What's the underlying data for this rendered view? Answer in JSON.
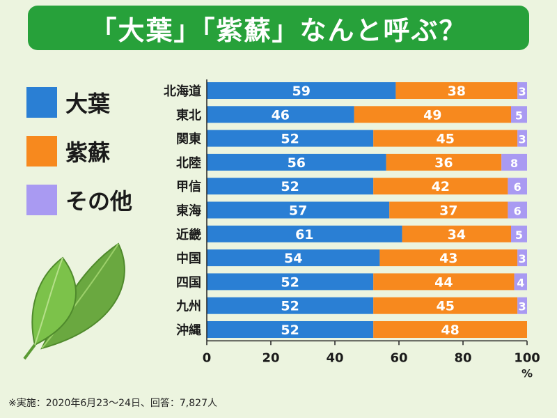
{
  "title": "「大葉」「紫蘇」なんと呼ぶ？",
  "footnote": "※実施：2020年6月23～24日、回答：7,827人",
  "colors": {
    "accent": "#27a13a",
    "background": "#ecf4df"
  },
  "chart_data": {
    "type": "bar",
    "orientation": "horizontal",
    "stacked": true,
    "categories": [
      "北海道",
      "東北",
      "関東",
      "北陸",
      "甲信",
      "東海",
      "近畿",
      "中国",
      "四国",
      "九州",
      "沖縄"
    ],
    "series": [
      {
        "name": "大葉",
        "color": "#2a7fd4",
        "values": [
          59,
          46,
          52,
          56,
          52,
          57,
          61,
          54,
          52,
          52,
          52
        ]
      },
      {
        "name": "紫蘇",
        "color": "#f7891e",
        "values": [
          38,
          49,
          45,
          36,
          42,
          37,
          34,
          43,
          44,
          45,
          48
        ]
      },
      {
        "name": "その他",
        "color": "#a99af2",
        "values": [
          3,
          5,
          3,
          8,
          6,
          6,
          5,
          3,
          4,
          3,
          0
        ]
      }
    ],
    "xlim": [
      0,
      100
    ],
    "xticks": [
      "0",
      "20",
      "40",
      "60",
      "80",
      "100"
    ],
    "xunit": "%",
    "grid": false,
    "legend_position": "left"
  }
}
